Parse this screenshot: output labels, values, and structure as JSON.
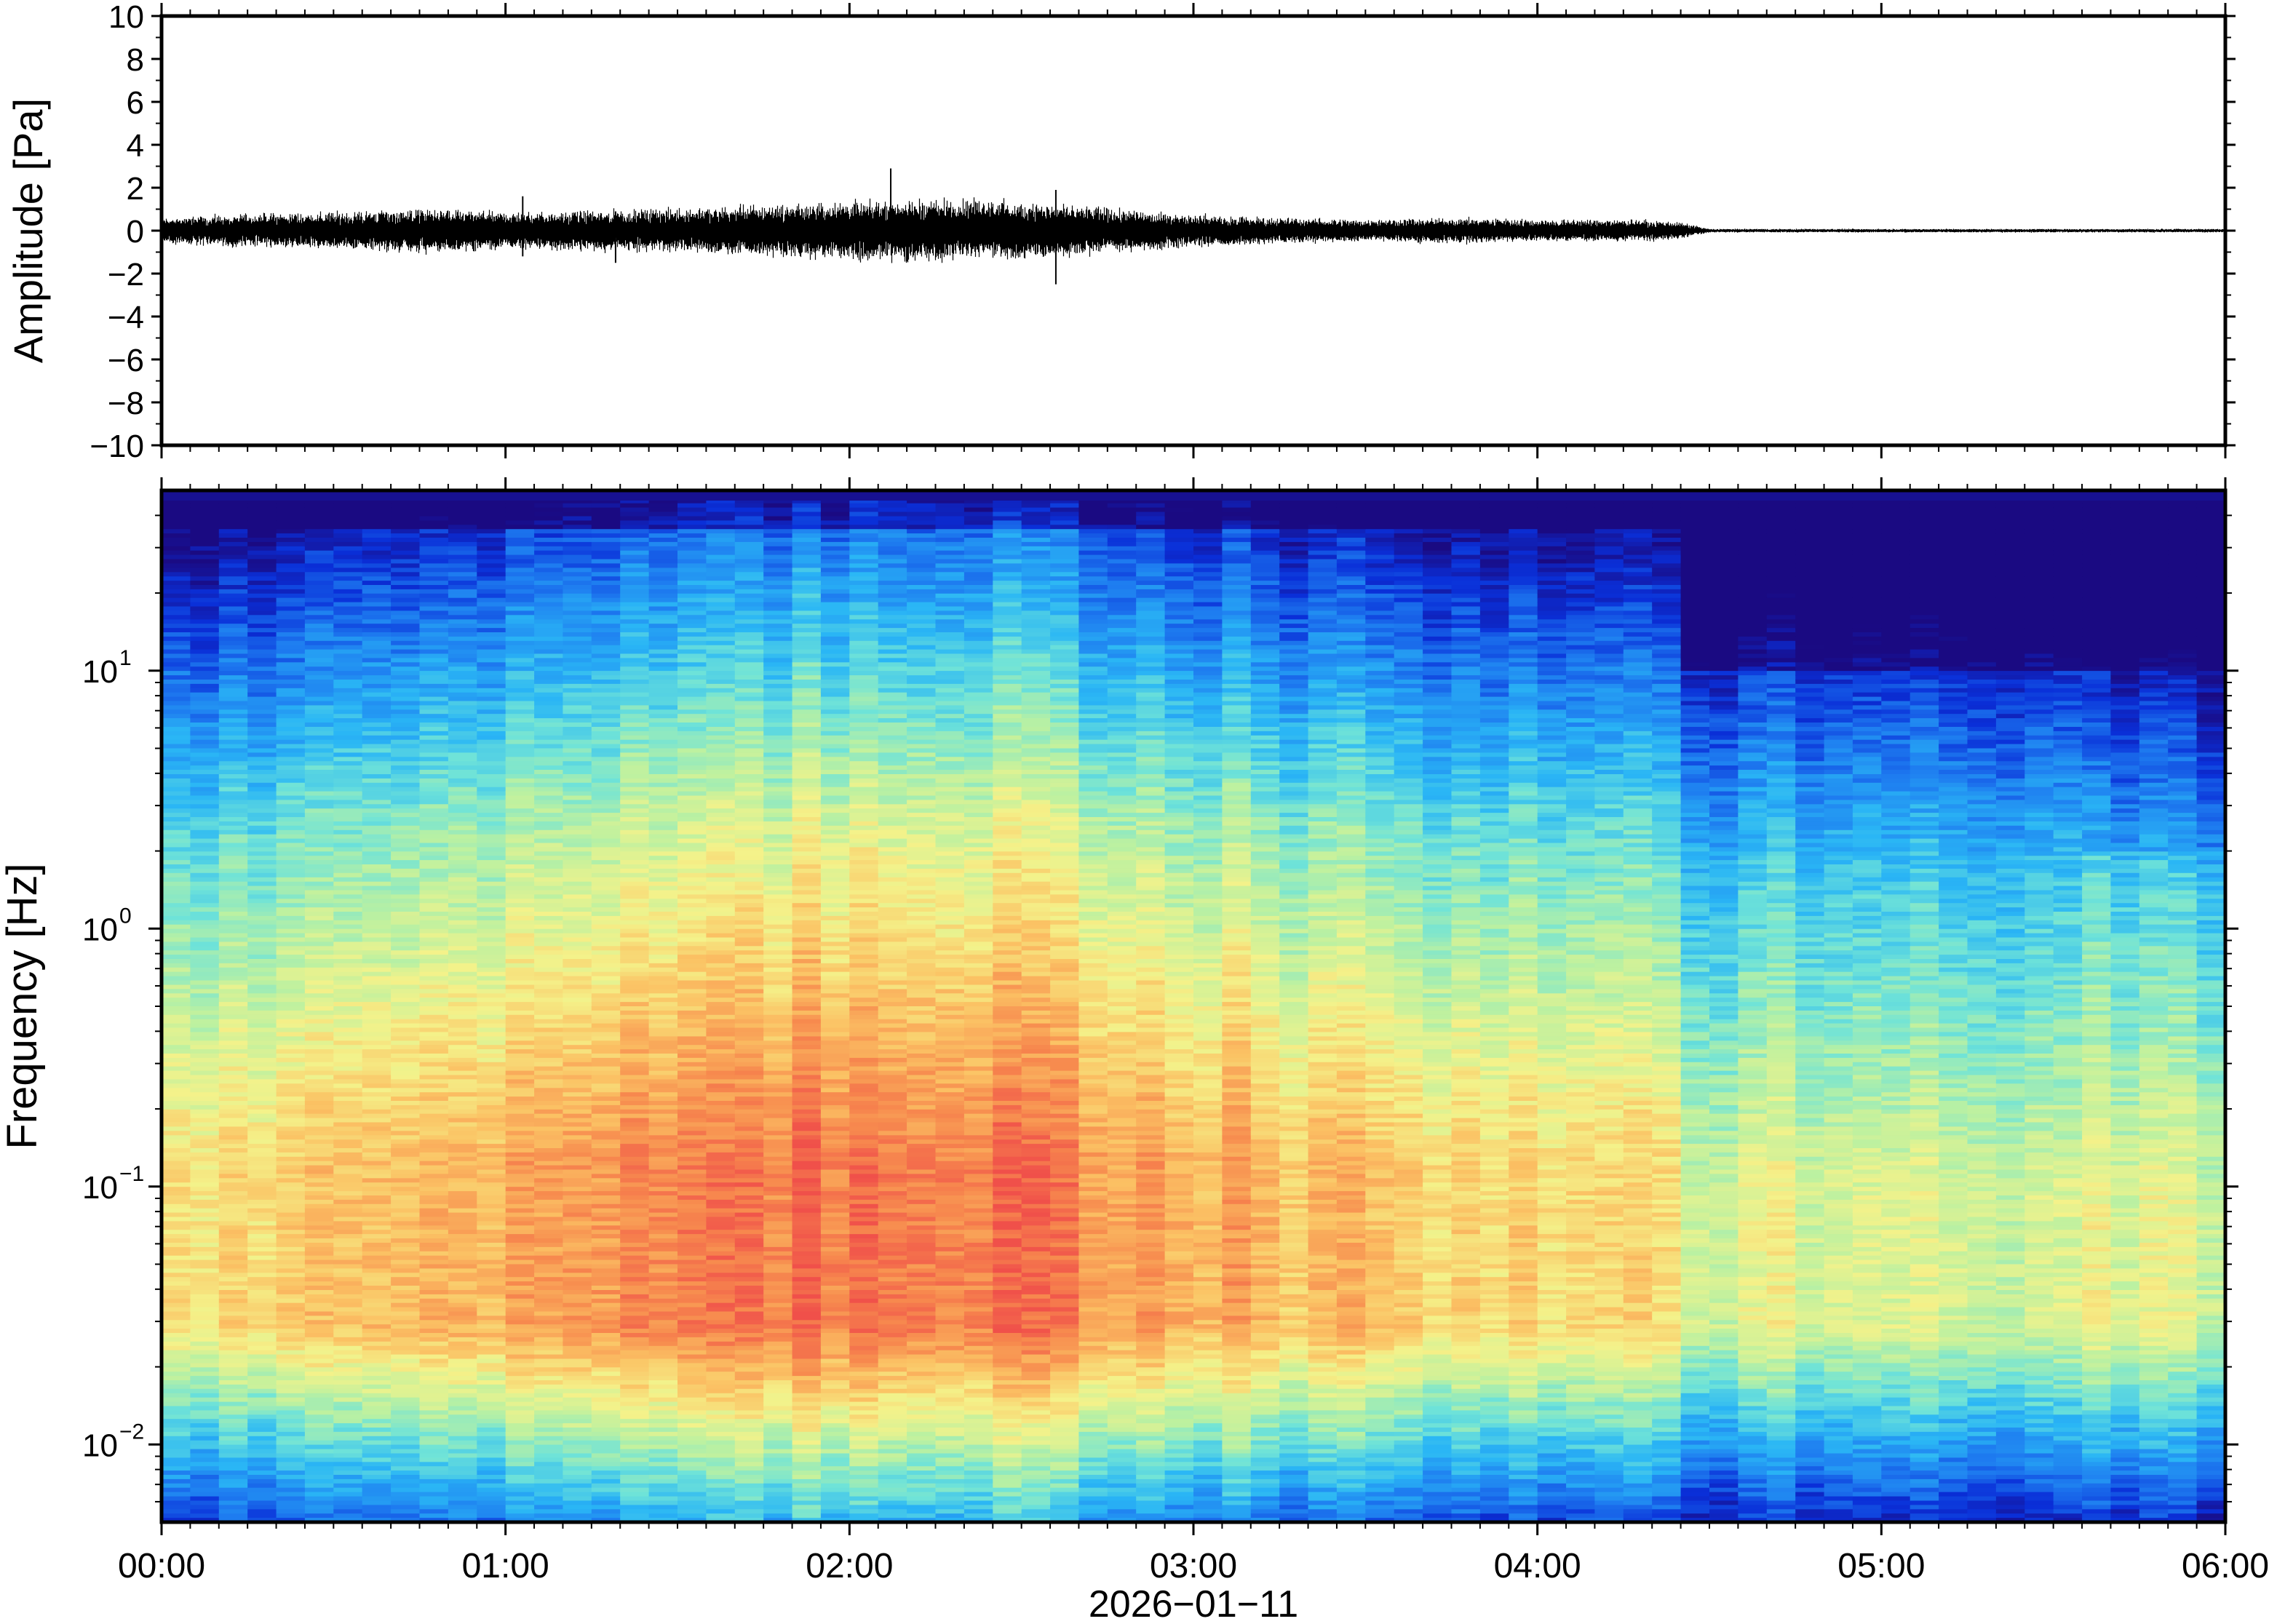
{
  "chart_data": [
    {
      "type": "line",
      "panel": "waveform",
      "ylabel": "Amplitude [Pa]",
      "ylim": [
        -10,
        10
      ],
      "yticks": [
        10,
        8,
        6,
        4,
        2,
        0,
        -2,
        -4,
        -6,
        -8,
        -10
      ],
      "ytick_labels": [
        "10",
        "8",
        "6",
        "4",
        "2",
        "0",
        "−2",
        "−4",
        "−6",
        "−8",
        "−10"
      ],
      "xlim_hours": [
        0,
        6
      ],
      "envelope": {
        "t_hours": [
          0.0,
          0.25,
          0.5,
          0.75,
          1.0,
          1.25,
          1.5,
          1.75,
          2.0,
          2.25,
          2.5,
          2.75,
          3.0,
          3.25,
          3.5,
          3.75,
          4.0,
          4.25,
          4.4,
          4.5,
          5.0,
          5.5,
          6.0
        ],
        "half_width_pa": [
          0.35,
          0.45,
          0.5,
          0.6,
          0.5,
          0.55,
          0.6,
          0.7,
          0.8,
          0.85,
          0.8,
          0.6,
          0.45,
          0.35,
          0.3,
          0.35,
          0.3,
          0.3,
          0.25,
          0.05,
          0.05,
          0.05,
          0.05
        ]
      },
      "spikes": [
        {
          "t_hours": 2.12,
          "min": -0.6,
          "max": 2.9
        },
        {
          "t_hours": 2.6,
          "min": -2.5,
          "max": 1.9
        },
        {
          "t_hours": 1.05,
          "min": -1.2,
          "max": 1.6
        },
        {
          "t_hours": 1.32,
          "min": -1.5,
          "max": 0.9
        }
      ],
      "grid": false
    },
    {
      "type": "heatmap",
      "panel": "spectrogram",
      "ylabel": "Frequency [Hz]",
      "yscale": "log",
      "ylim_hz": [
        0.005,
        50
      ],
      "yticks_hz": [
        0.01,
        0.1,
        1,
        10
      ],
      "ytick_base": "10",
      "ytick_exponents": [
        "−2",
        "−1",
        "0",
        "1"
      ],
      "xlabel": "2026−01−11",
      "xticks": [
        "00:00",
        "01:00",
        "02:00",
        "03:00",
        "04:00",
        "05:00",
        "06:00"
      ],
      "xlim_hours": [
        0,
        6
      ],
      "colormap": "jet",
      "colormap_stops": [
        "#1a0a82",
        "#0a2fd8",
        "#1e7cf0",
        "#2ab6f5",
        "#6fe3d8",
        "#bdf1a0",
        "#f4f28a",
        "#fbc264",
        "#f78a4e",
        "#f0504a"
      ],
      "quiet_onset_hours": 4.45,
      "peak_power_band_hz": [
        0.04,
        0.2
      ],
      "grid": false,
      "legend": "none"
    }
  ]
}
